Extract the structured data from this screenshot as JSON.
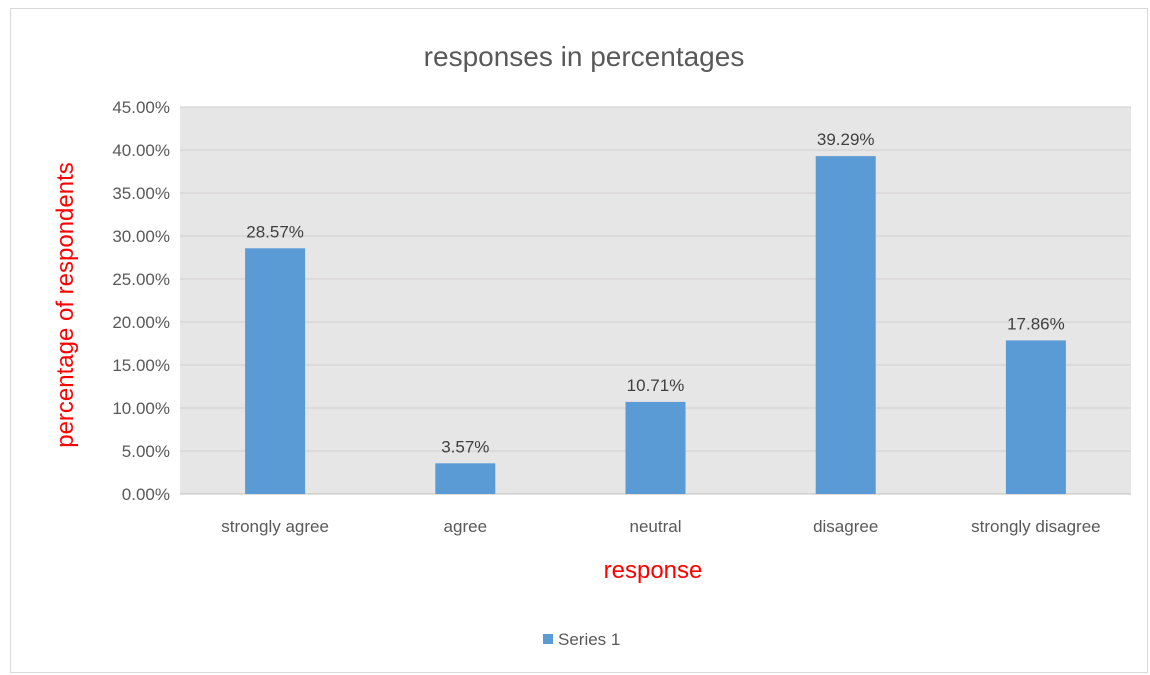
{
  "chart_data": {
    "type": "bar",
    "title": "responses in percentages",
    "xlabel": "response",
    "ylabel": "percentage of respondents",
    "categories": [
      "strongly agree",
      "agree",
      "neutral",
      "disagree",
      "strongly disagree"
    ],
    "series": [
      {
        "name": "Series 1",
        "values": [
          28.57,
          3.57,
          10.71,
          39.29,
          17.86
        ],
        "labels": [
          "28.57%",
          "3.57%",
          "10.71%",
          "39.29%",
          "17.86%"
        ]
      }
    ],
    "ylim": [
      0,
      45
    ],
    "yticks": [
      "0.00%",
      "5.00%",
      "10.00%",
      "15.00%",
      "20.00%",
      "25.00%",
      "30.00%",
      "35.00%",
      "40.00%",
      "45.00%"
    ],
    "grid": true,
    "legend_position": "bottom",
    "colors": {
      "bar": "#5b9bd5",
      "plot_background": "#e7e6e6",
      "gridline": "#d0cece",
      "axis_title": "#ff0000"
    }
  }
}
